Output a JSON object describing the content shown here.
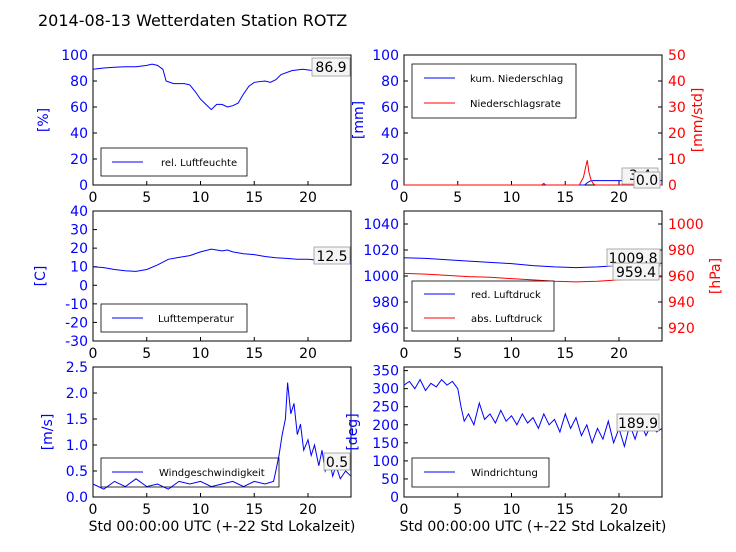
{
  "title": "2014-08-13 Wetterdaten Station ROTZ",
  "colors": {
    "primary": "#0000ff",
    "secondary": "#ff0000",
    "light": "#8080ff",
    "axis": "#000000",
    "background": "#ffffff"
  },
  "chart_data": [
    {
      "type": "line",
      "ylabel": "[%]",
      "xlim": [
        0,
        24
      ],
      "xticks": [
        0,
        5,
        10,
        15,
        20
      ],
      "ylim": [
        0,
        100
      ],
      "yticks": [
        0,
        20,
        40,
        60,
        80,
        100
      ],
      "legend": {
        "location": "lower-center",
        "entries": [
          "rel. Luftfeuchte"
        ]
      },
      "value_labels": [
        "86.9"
      ],
      "series": [
        {
          "name": "rel. Luftfeuchte",
          "color": "#0000ff",
          "points": [
            [
              0,
              89
            ],
            [
              1,
              90
            ],
            [
              2,
              90.5
            ],
            [
              3,
              91
            ],
            [
              4,
              91
            ],
            [
              5,
              92
            ],
            [
              5.5,
              93
            ],
            [
              6,
              92
            ],
            [
              6.5,
              89
            ],
            [
              6.8,
              80
            ],
            [
              7.5,
              78
            ],
            [
              8.5,
              78
            ],
            [
              9,
              77
            ],
            [
              9.5,
              72
            ],
            [
              10,
              66
            ],
            [
              10.5,
              62
            ],
            [
              11,
              58
            ],
            [
              11.5,
              62
            ],
            [
              12,
              62
            ],
            [
              12.5,
              60
            ],
            [
              13,
              61
            ],
            [
              13.5,
              63
            ],
            [
              14,
              70
            ],
            [
              14.5,
              76
            ],
            [
              15,
              79
            ],
            [
              16,
              80
            ],
            [
              16.5,
              79
            ],
            [
              17,
              81
            ],
            [
              17.5,
              85
            ],
            [
              18.5,
              88
            ],
            [
              19.5,
              89
            ],
            [
              20.5,
              88
            ],
            [
              21.5,
              88
            ],
            [
              22.5,
              87
            ],
            [
              23.5,
              87
            ]
          ]
        }
      ]
    },
    {
      "type": "line",
      "ylabel": "[mm]",
      "y2label": "[mm/std]",
      "xlim": [
        0,
        24
      ],
      "xticks": [
        0,
        5,
        10,
        15,
        20
      ],
      "ylim": [
        0,
        100
      ],
      "yticks": [
        0,
        20,
        40,
        60,
        80,
        100
      ],
      "y2lim": [
        0,
        50
      ],
      "y2ticks": [
        0,
        10,
        20,
        30,
        40,
        50
      ],
      "legend": {
        "location": "upper-left",
        "entries": [
          "kum. Niederschlag",
          "Niederschlagsrate"
        ]
      },
      "value_labels": [
        "3.4",
        "0.0"
      ],
      "series": [
        {
          "name": "kum. Niederschlag",
          "color": "#0000ff",
          "axis": "left",
          "points": [
            [
              0,
              0
            ],
            [
              16.8,
              0
            ],
            [
              17,
              1.5
            ],
            [
              17.3,
              3
            ],
            [
              17.6,
              3.4
            ],
            [
              24,
              3.4
            ]
          ]
        },
        {
          "name": "Niederschlagsrate",
          "color": "#ff0000",
          "axis": "right",
          "points": [
            [
              0,
              0
            ],
            [
              12.8,
              0
            ],
            [
              13,
              0.6
            ],
            [
              13.2,
              0
            ],
            [
              16.3,
              0
            ],
            [
              16.5,
              1.5
            ],
            [
              16.7,
              3
            ],
            [
              16.9,
              7
            ],
            [
              17.05,
              9.5
            ],
            [
              17.2,
              5
            ],
            [
              17.4,
              2
            ],
            [
              17.6,
              0.5
            ],
            [
              17.8,
              0
            ],
            [
              24,
              0
            ]
          ]
        }
      ]
    },
    {
      "type": "line",
      "ylabel": "[C]",
      "xlim": [
        0,
        24
      ],
      "xticks": [
        0,
        5,
        10,
        15,
        20
      ],
      "ylim": [
        -30,
        40
      ],
      "yticks": [
        -30,
        -20,
        -10,
        0,
        10,
        20,
        30,
        40
      ],
      "legend": {
        "location": "lower-center",
        "entries": [
          "Lufttemperatur"
        ]
      },
      "value_labels": [
        "12.5"
      ],
      "series": [
        {
          "name": "Lufttemperatur",
          "color": "#0000ff",
          "points": [
            [
              0,
              10
            ],
            [
              1,
              9.5
            ],
            [
              2,
              8.5
            ],
            [
              3,
              7.8
            ],
            [
              4,
              7.5
            ],
            [
              5,
              8.5
            ],
            [
              6,
              11
            ],
            [
              7,
              14
            ],
            [
              8,
              15
            ],
            [
              9,
              16
            ],
            [
              10,
              18
            ],
            [
              11,
              19.5
            ],
            [
              12,
              18.5
            ],
            [
              12.5,
              19
            ],
            [
              13,
              18
            ],
            [
              14,
              17
            ],
            [
              15,
              16.5
            ],
            [
              16,
              15.5
            ],
            [
              17,
              14.8
            ],
            [
              18,
              14.5
            ],
            [
              19,
              14
            ],
            [
              20,
              14
            ],
            [
              21,
              13.5
            ],
            [
              22,
              13
            ],
            [
              23,
              12.5
            ],
            [
              24,
              12.5
            ]
          ]
        }
      ]
    },
    {
      "type": "line",
      "ylabel": "",
      "y2label": "[hPa]",
      "xlim": [
        0,
        24
      ],
      "xticks": [
        0,
        5,
        10,
        15,
        20
      ],
      "ylim": [
        950,
        1050
      ],
      "yticks": [
        960,
        980,
        1000,
        1020,
        1040
      ],
      "y2lim": [
        910,
        1010
      ],
      "y2ticks": [
        920,
        940,
        960,
        980,
        1000
      ],
      "legend": {
        "location": "lower-left",
        "entries": [
          "red. Luftdruck",
          "abs. Luftdruck"
        ]
      },
      "value_labels": [
        "1009.8",
        "959.4"
      ],
      "series": [
        {
          "name": "red. Luftdruck",
          "color": "#0000ff",
          "axis": "left",
          "points": [
            [
              0,
              1014
            ],
            [
              2,
              1013.5
            ],
            [
              4,
              1012.5
            ],
            [
              6,
              1011.5
            ],
            [
              8,
              1010.5
            ],
            [
              10,
              1009.5
            ],
            [
              12,
              1008
            ],
            [
              14,
              1007
            ],
            [
              16,
              1006.5
            ],
            [
              18,
              1007
            ],
            [
              20,
              1008
            ],
            [
              22,
              1009
            ],
            [
              24,
              1009.8
            ]
          ]
        },
        {
          "name": "abs. Luftdruck",
          "color": "#ff0000",
          "axis": "right",
          "points": [
            [
              0,
              962
            ],
            [
              2,
              961.5
            ],
            [
              4,
              960.5
            ],
            [
              6,
              959.5
            ],
            [
              8,
              959
            ],
            [
              10,
              958
            ],
            [
              12,
              957
            ],
            [
              14,
              956
            ],
            [
              16,
              955.5
            ],
            [
              18,
              956
            ],
            [
              20,
              957
            ],
            [
              22,
              958
            ],
            [
              24,
              959.4
            ]
          ]
        }
      ]
    },
    {
      "type": "line",
      "ylabel": "[m/s]",
      "xlabel": "Std 00:00:00 UTC (+-22 Std Lokalzeit)",
      "xlim": [
        0,
        24
      ],
      "xticks": [
        0,
        5,
        10,
        15,
        20
      ],
      "ylim": [
        0,
        2.5
      ],
      "yticks": [
        0.0,
        0.5,
        1.0,
        1.5,
        2.0,
        2.5
      ],
      "legend": {
        "location": "lower-center",
        "entries": [
          "Windgeschwindigkeit"
        ]
      },
      "value_labels": [
        "0.5"
      ],
      "series": [
        {
          "name": "Windgeschwindigkeit",
          "color": "#0000ff",
          "points": [
            [
              0,
              0.25
            ],
            [
              1,
              0.15
            ],
            [
              2,
              0.3
            ],
            [
              3,
              0.2
            ],
            [
              4,
              0.35
            ],
            [
              5,
              0.2
            ],
            [
              6,
              0.25
            ],
            [
              7,
              0.15
            ],
            [
              8,
              0.3
            ],
            [
              9,
              0.25
            ],
            [
              10,
              0.3
            ],
            [
              11,
              0.2
            ],
            [
              12,
              0.25
            ],
            [
              13,
              0.3
            ],
            [
              14,
              0.2
            ],
            [
              15,
              0.3
            ],
            [
              16,
              0.25
            ],
            [
              16.8,
              0.3
            ],
            [
              17,
              0.5
            ],
            [
              17.3,
              0.8
            ],
            [
              17.6,
              1.2
            ],
            [
              17.9,
              1.5
            ],
            [
              18.1,
              2.2
            ],
            [
              18.4,
              1.6
            ],
            [
              18.7,
              1.8
            ],
            [
              19,
              1.2
            ],
            [
              19.3,
              1.4
            ],
            [
              19.6,
              0.9
            ],
            [
              20,
              1.1
            ],
            [
              20.3,
              0.8
            ],
            [
              20.6,
              1.0
            ],
            [
              21,
              0.6
            ],
            [
              21.3,
              0.9
            ],
            [
              21.6,
              0.5
            ],
            [
              22,
              0.7
            ],
            [
              22.3,
              0.4
            ],
            [
              22.6,
              0.6
            ],
            [
              23,
              0.35
            ],
            [
              23.5,
              0.5
            ],
            [
              24,
              0.4
            ]
          ]
        }
      ]
    },
    {
      "type": "line",
      "ylabel": "[deg]",
      "xlabel": "Std 00:00:00 UTC (+-22 Std Lokalzeit)",
      "xlim": [
        0,
        24
      ],
      "xticks": [
        0,
        5,
        10,
        15,
        20
      ],
      "ylim": [
        0,
        360
      ],
      "yticks": [
        0,
        50,
        100,
        150,
        200,
        250,
        300,
        350
      ],
      "legend": {
        "location": "lower-left",
        "entries": [
          "Windrichtung"
        ]
      },
      "value_labels": [
        "189.9"
      ],
      "series": [
        {
          "name": "Windrichtung",
          "color": "#0000ff",
          "points": [
            [
              0,
              310
            ],
            [
              0.5,
              320
            ],
            [
              1,
              300
            ],
            [
              1.5,
              325
            ],
            [
              2,
              295
            ],
            [
              2.5,
              315
            ],
            [
              3,
              305
            ],
            [
              3.5,
              325
            ],
            [
              4,
              310
            ],
            [
              4.5,
              320
            ],
            [
              5,
              300
            ],
            [
              5.3,
              250
            ],
            [
              5.6,
              210
            ],
            [
              6,
              230
            ],
            [
              6.5,
              200
            ],
            [
              7,
              260
            ],
            [
              7.5,
              215
            ],
            [
              8,
              230
            ],
            [
              8.5,
              205
            ],
            [
              9,
              240
            ],
            [
              9.5,
              210
            ],
            [
              10,
              225
            ],
            [
              10.5,
              200
            ],
            [
              11,
              230
            ],
            [
              11.5,
              205
            ],
            [
              12,
              220
            ],
            [
              12.5,
              190
            ],
            [
              13,
              230
            ],
            [
              13.5,
              200
            ],
            [
              14,
              215
            ],
            [
              14.5,
              180
            ],
            [
              15,
              230
            ],
            [
              15.5,
              190
            ],
            [
              16,
              220
            ],
            [
              16.5,
              170
            ],
            [
              17,
              200
            ],
            [
              17.5,
              150
            ],
            [
              18,
              190
            ],
            [
              18.5,
              160
            ],
            [
              19,
              210
            ],
            [
              19.5,
              150
            ],
            [
              20,
              190
            ],
            [
              20.5,
              140
            ],
            [
              21,
              200
            ],
            [
              21.5,
              160
            ],
            [
              22,
              210
            ],
            [
              22.5,
              170
            ],
            [
              23,
              200
            ],
            [
              23.5,
              180
            ],
            [
              24,
              190
            ]
          ]
        }
      ]
    }
  ]
}
